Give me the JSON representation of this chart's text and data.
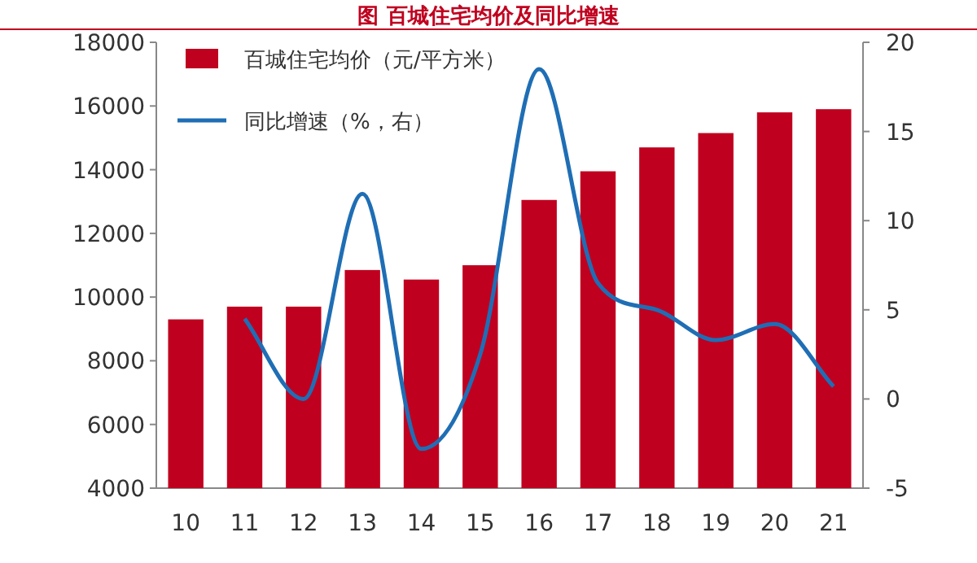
{
  "chart_data": {
    "type": "bar",
    "title": "图  百城住宅均价及同比增速",
    "categories": [
      "10",
      "11",
      "12",
      "13",
      "14",
      "15",
      "16",
      "17",
      "18",
      "19",
      "20",
      "21"
    ],
    "series": [
      {
        "name": "百城住宅均价（元/平方米）",
        "color": "#c0001f",
        "values": [
          9300,
          9700,
          9700,
          10850,
          10550,
          11000,
          13050,
          13950,
          14700,
          15150,
          15800,
          15900
        ]
      },
      {
        "name": "同比增速（%，右）",
        "type": "line",
        "axis": "y2",
        "color": "#1f6eb5",
        "values": [
          null,
          4.5,
          0,
          11.5,
          -2.8,
          2.5,
          18.5,
          6.5,
          5,
          3.3,
          4.2,
          0.7
        ]
      }
    ],
    "ylim": [
      4000,
      18000
    ],
    "yticks": [
      4000,
      6000,
      8000,
      10000,
      12000,
      14000,
      16000,
      18000
    ],
    "y2lim": [
      -5,
      20
    ],
    "y2ticks": [
      -5,
      0,
      5,
      10,
      15,
      20
    ],
    "legend": "top left",
    "grid": false,
    "marker": "none",
    "line_style": "solid"
  }
}
